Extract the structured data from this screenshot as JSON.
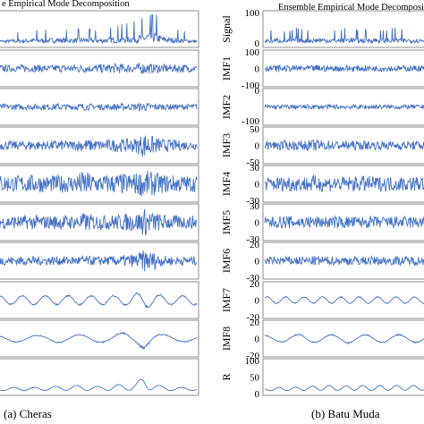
{
  "figure": {
    "left_title": "e Empirical Mode Decomposition",
    "right_title": "Ensemble Empirical Mode Decomposition",
    "left_caption": "(a) Cheras",
    "right_caption": "(b) Batu Muda"
  },
  "chart_data": [
    {
      "type": "line",
      "title": "e Empirical Mode Decomposition",
      "caption": "(a) Cheras",
      "series": [
        {
          "label": "Signal",
          "envelope": [
            0.2,
            0.2,
            0.25,
            0.25,
            0.3,
            0.3,
            0.3,
            0.35,
            0.3,
            0.3,
            0.35,
            0.3,
            0.3,
            0.35,
            0.4,
            0.45,
            0.5,
            0.6,
            0.8,
            0.45,
            0.35,
            0.3,
            0.25,
            0.2
          ],
          "baseline": "bottom"
        },
        {
          "label": "IMF1",
          "envelope": [
            0.25,
            0.25,
            0.2,
            0.25,
            0.25,
            0.25,
            0.2,
            0.25,
            0.25,
            0.3,
            0.3,
            0.25,
            0.3,
            0.3,
            0.35,
            0.3,
            0.3,
            0.4,
            0.3,
            0.3,
            0.25,
            0.3,
            0.25,
            0.2
          ],
          "baseline": "center"
        },
        {
          "label": "IMF2",
          "envelope": [
            0.2,
            0.2,
            0.2,
            0.2,
            0.2,
            0.2,
            0.2,
            0.25,
            0.2,
            0.2,
            0.25,
            0.2,
            0.2,
            0.2,
            0.25,
            0.2,
            0.25,
            0.3,
            0.25,
            0.2,
            0.2,
            0.2,
            0.2,
            0.2
          ],
          "baseline": "center"
        },
        {
          "label": "IMF3",
          "envelope": [
            0.3,
            0.3,
            0.3,
            0.3,
            0.35,
            0.3,
            0.3,
            0.35,
            0.35,
            0.3,
            0.45,
            0.4,
            0.35,
            0.4,
            0.45,
            0.45,
            0.5,
            0.85,
            0.6,
            0.45,
            0.4,
            0.35,
            0.3,
            0.3
          ],
          "baseline": "center"
        },
        {
          "label": "IMF4",
          "envelope": [
            0.6,
            0.6,
            0.55,
            0.6,
            0.6,
            0.6,
            0.55,
            0.6,
            0.6,
            0.6,
            0.9,
            0.7,
            0.6,
            0.65,
            0.7,
            0.7,
            0.75,
            0.9,
            0.8,
            0.65,
            0.6,
            0.6,
            0.55,
            0.55
          ],
          "baseline": "center"
        },
        {
          "label": "IMF5",
          "envelope": [
            0.45,
            0.45,
            0.45,
            0.45,
            0.5,
            0.45,
            0.45,
            0.5,
            0.5,
            0.45,
            0.65,
            0.55,
            0.5,
            0.5,
            0.55,
            0.6,
            0.6,
            0.95,
            0.7,
            0.55,
            0.5,
            0.45,
            0.45,
            0.45
          ],
          "baseline": "center"
        },
        {
          "label": "IMF6",
          "envelope": [
            0.3,
            0.3,
            0.3,
            0.3,
            0.3,
            0.3,
            0.3,
            0.3,
            0.3,
            0.3,
            0.35,
            0.3,
            0.3,
            0.3,
            0.35,
            0.4,
            0.45,
            0.75,
            0.6,
            0.35,
            0.3,
            0.3,
            0.3,
            0.3
          ],
          "baseline": "center"
        },
        {
          "label": "IMF7",
          "envelope": [
            0.35,
            0.35,
            0.35,
            0.35,
            0.35,
            0.35,
            0.35,
            0.35,
            0.35,
            0.35,
            0.35,
            0.35,
            0.35,
            0.35,
            0.35,
            0.4,
            0.5,
            0.6,
            0.5,
            0.4,
            0.35,
            0.35,
            0.35,
            0.35
          ],
          "baseline": "center"
        },
        {
          "label": "IMF8",
          "envelope": [
            0.25,
            0.25,
            0.25,
            0.25,
            0.25,
            0.25,
            0.25,
            0.3,
            0.3,
            0.3,
            0.3,
            0.3,
            0.3,
            0.35,
            0.4,
            0.45,
            0.45,
            0.75,
            0.5,
            0.3,
            0.3,
            0.25,
            0.25,
            0.25
          ],
          "baseline": "center"
        },
        {
          "label": "R",
          "envelope": [
            0.15,
            0.15,
            0.2,
            0.2,
            0.2,
            0.2,
            0.25,
            0.25,
            0.3,
            0.3,
            0.3,
            0.25,
            0.25,
            0.3,
            0.35,
            0.35,
            0.45,
            0.8,
            0.45,
            0.25,
            0.2,
            0.2,
            0.2,
            0.15
          ],
          "baseline": "bottom"
        }
      ]
    },
    {
      "type": "line",
      "title": "Ensemble Empirical Mode Decomposition",
      "caption": "(b) Batu Muda",
      "series": [
        {
          "label": "Signal",
          "ylim": [
            0,
            100
          ],
          "ticks": [
            "100",
            "0"
          ],
          "envelope": [
            0.25,
            0.3,
            0.3,
            0.25,
            0.35,
            0.3,
            0.3,
            0.35,
            0.3,
            0.3,
            0.3,
            0.4,
            0.3,
            0.3,
            0.35,
            0.3,
            0.3,
            0.35,
            0.3,
            0.3,
            0.3,
            0.3
          ],
          "baseline": "bottom"
        },
        {
          "label": "IMF1",
          "ylim": [
            -100,
            100
          ],
          "ticks": [
            "100",
            "0",
            "-100"
          ],
          "envelope": [
            0.2,
            0.2,
            0.25,
            0.2,
            0.2,
            0.2,
            0.2,
            0.25,
            0.2,
            0.2,
            0.2,
            0.25,
            0.2,
            0.2,
            0.2,
            0.2,
            0.2,
            0.2,
            0.2,
            0.2,
            0.2,
            0.2
          ],
          "baseline": "center"
        },
        {
          "label": "IMF2",
          "ylim": [
            -100,
            100
          ],
          "ticks": [
            "0",
            "-100"
          ],
          "envelope": [
            0.15,
            0.15,
            0.15,
            0.15,
            0.15,
            0.15,
            0.15,
            0.15,
            0.15,
            0.15,
            0.15,
            0.15,
            0.15,
            0.15,
            0.15,
            0.15,
            0.15,
            0.15,
            0.15,
            0.15,
            0.15,
            0.15
          ],
          "baseline": "center"
        },
        {
          "label": "IMF3",
          "ylim": [
            -50,
            50
          ],
          "ticks": [
            "50",
            "0",
            "-50"
          ],
          "envelope": [
            0.3,
            0.3,
            0.35,
            0.3,
            0.3,
            0.35,
            0.35,
            0.4,
            0.35,
            0.3,
            0.3,
            0.35,
            0.3,
            0.3,
            0.3,
            0.3,
            0.3,
            0.3,
            0.3,
            0.3,
            0.3,
            0.3
          ],
          "baseline": "center"
        },
        {
          "label": "IMF4",
          "ylim": [
            -30,
            30
          ],
          "ticks": [
            "30",
            "0",
            "-30"
          ],
          "envelope": [
            0.45,
            0.5,
            0.5,
            0.55,
            0.5,
            0.5,
            0.6,
            0.55,
            0.5,
            0.55,
            0.5,
            0.5,
            0.5,
            0.55,
            0.5,
            0.5,
            0.5,
            0.5,
            0.5,
            0.5,
            0.5,
            0.5
          ],
          "baseline": "center"
        },
        {
          "label": "IMF5",
          "ylim": [
            -30,
            30
          ],
          "ticks": [
            "30",
            "0",
            "-30"
          ],
          "envelope": [
            0.35,
            0.4,
            0.4,
            0.45,
            0.4,
            0.4,
            0.45,
            0.4,
            0.4,
            0.4,
            0.45,
            0.4,
            0.4,
            0.4,
            0.4,
            0.4,
            0.4,
            0.4,
            0.4,
            0.4,
            0.4,
            0.4
          ],
          "baseline": "center"
        },
        {
          "label": "IMF6",
          "ylim": [
            -30,
            30
          ],
          "ticks": [
            "20",
            "0",
            "-30"
          ],
          "envelope": [
            0.25,
            0.25,
            0.3,
            0.3,
            0.3,
            0.3,
            0.3,
            0.35,
            0.3,
            0.3,
            0.3,
            0.3,
            0.3,
            0.3,
            0.3,
            0.3,
            0.3,
            0.3,
            0.3,
            0.3,
            0.3,
            0.3
          ],
          "baseline": "center"
        },
        {
          "label": "IMF7",
          "ylim": [
            -20,
            20
          ],
          "ticks": [
            "20",
            "0",
            "-20"
          ],
          "envelope": [
            0.25,
            0.25,
            0.25,
            0.25,
            0.25,
            0.25,
            0.25,
            0.25,
            0.25,
            0.25,
            0.25,
            0.25,
            0.25,
            0.25,
            0.25,
            0.25,
            0.25,
            0.25,
            0.25,
            0.25,
            0.25,
            0.25
          ],
          "baseline": "center"
        },
        {
          "label": "IMF8",
          "ylim": [
            -20,
            20
          ],
          "ticks": [
            "20",
            "0",
            "-20"
          ],
          "envelope": [
            0.25,
            0.25,
            0.25,
            0.3,
            0.3,
            0.35,
            0.3,
            0.3,
            0.3,
            0.3,
            0.3,
            0.35,
            0.3,
            0.3,
            0.3,
            0.3,
            0.3,
            0.3,
            0.3,
            0.3,
            0.3,
            0.3
          ],
          "baseline": "center"
        },
        {
          "label": "R",
          "ylim": [
            0,
            100
          ],
          "ticks": [
            "100",
            "50",
            "0"
          ],
          "envelope": [
            0.15,
            0.15,
            0.2,
            0.2,
            0.2,
            0.25,
            0.25,
            0.3,
            0.3,
            0.3,
            0.25,
            0.3,
            0.3,
            0.3,
            0.25,
            0.3,
            0.3,
            0.3,
            0.3,
            0.3,
            0.3,
            0.3
          ],
          "baseline": "bottom"
        }
      ]
    }
  ]
}
